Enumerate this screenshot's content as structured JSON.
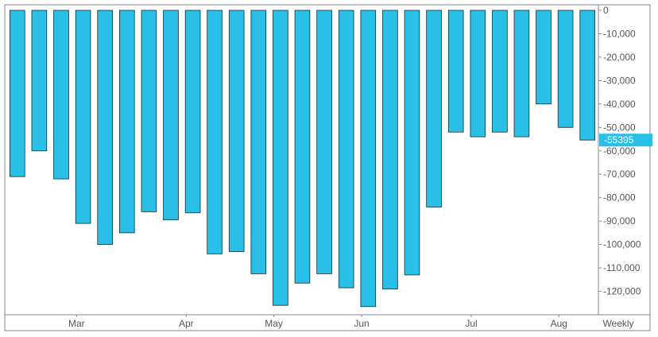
{
  "chart_data": {
    "type": "bar",
    "period_label": "Weekly",
    "month_labels": [
      "Mar",
      "Apr",
      "May",
      "Jun",
      "Jul",
      "Aug"
    ],
    "month_positions": [
      2.7,
      7.7,
      11.7,
      15.7,
      20.7,
      24.7
    ],
    "values": [
      -71000,
      -60000,
      -72000,
      -91000,
      -100000,
      -95000,
      -86000,
      -89500,
      -86500,
      -104000,
      -103000,
      -112500,
      -126000,
      -116500,
      -112500,
      -118500,
      -126500,
      -119000,
      -113000,
      -84000,
      -52000,
      -54000,
      -52000,
      -54000,
      -40000,
      -50000,
      -55395
    ],
    "ylim": [
      -130000,
      0
    ],
    "yticks": [
      0,
      -10000,
      -20000,
      -30000,
      -40000,
      -50000,
      -60000,
      -70000,
      -80000,
      -90000,
      -100000,
      -110000,
      -120000
    ],
    "ytick_labels": [
      "0",
      "-10,000",
      "-20,000",
      "-30,000",
      "-40,000",
      "-50,000",
      "-60,000",
      "-70,000",
      "-80,000",
      "-90,000",
      "-100,000",
      "-110,000",
      "-120,000"
    ],
    "last_value_label": "-55395",
    "colors": {
      "bar": "#29bfe6",
      "bar_stroke": "#0f2f3d",
      "last_badge": "#29bfe6",
      "axis": "#888888"
    }
  }
}
